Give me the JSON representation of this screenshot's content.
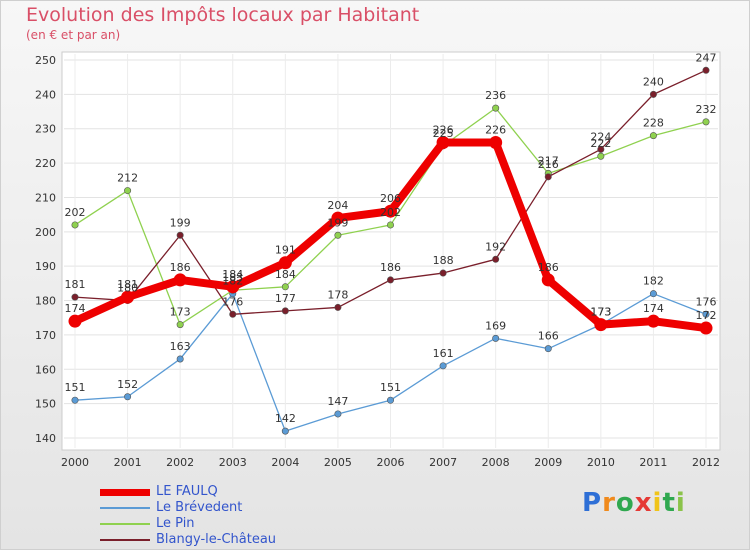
{
  "chart_data": {
    "type": "line",
    "title": "Evolution des Impôts locaux par Habitant",
    "subtitle": "(en € et par an)",
    "xlabel": "",
    "ylabel": "",
    "ylim": [
      140,
      250
    ],
    "yticks": [
      140,
      150,
      160,
      170,
      180,
      190,
      200,
      210,
      220,
      230,
      240,
      250
    ],
    "categories": [
      "2000",
      "2001",
      "2002",
      "2003",
      "2004",
      "2005",
      "2006",
      "2007",
      "2008",
      "2009",
      "2010",
      "2011",
      "2012"
    ],
    "series": [
      {
        "name": "LE FAULQ",
        "color": "#ee0000",
        "values": [
          174,
          181,
          186,
          184,
          191,
          204,
          206,
          226,
          226,
          186,
          173,
          174,
          172
        ]
      },
      {
        "name": "Le Brévedent",
        "color": "#5b9bd5",
        "values": [
          151,
          152,
          163,
          182,
          142,
          147,
          151,
          161,
          169,
          166,
          173,
          182,
          176
        ]
      },
      {
        "name": "Le Pin",
        "color": "#8fd14f",
        "values": [
          202,
          212,
          173,
          183,
          184,
          199,
          202,
          225,
          236,
          217,
          222,
          228,
          232
        ]
      },
      {
        "name": "Blangy-le-Château",
        "color": "#7a1f2b",
        "values": [
          181,
          180,
          199,
          176,
          177,
          178,
          186,
          188,
          192,
          216,
          224,
          240,
          247
        ]
      }
    ]
  },
  "brand": {
    "letters": [
      "P",
      "r",
      "o",
      "x",
      "i",
      "t",
      "i"
    ],
    "colors": [
      "#2e6fd6",
      "#f08a1c",
      "#2fa84f",
      "#e53935",
      "#f0c419",
      "#2fa84f",
      "#8bc34a"
    ]
  }
}
